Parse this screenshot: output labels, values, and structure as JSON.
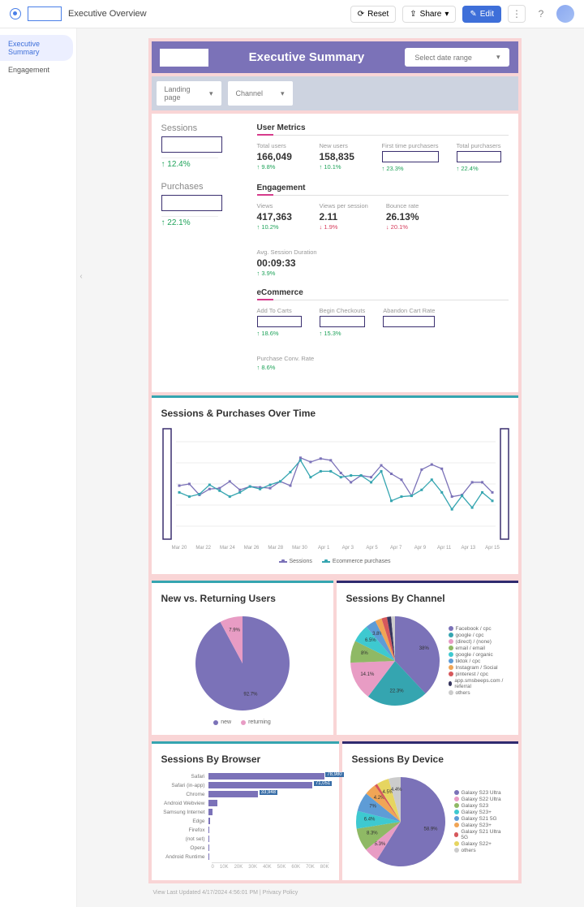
{
  "breadcrumb": "Executive Overview",
  "topbar": {
    "reset": "Reset",
    "share": "Share",
    "edit": "Edit"
  },
  "sidebar": {
    "items": [
      {
        "label": "Executive Summary",
        "active": true
      },
      {
        "label": "Engagement",
        "active": false
      }
    ]
  },
  "header": {
    "title": "Executive Summary",
    "date_range": "Select date range"
  },
  "filters": {
    "landing": "Landing page",
    "channel": "Channel"
  },
  "left_metrics": {
    "sessions": {
      "label": "Sessions",
      "delta": "12.4%",
      "dir": "up"
    },
    "purchases": {
      "label": "Purchases",
      "delta": "22.1%",
      "dir": "up"
    }
  },
  "user_metrics": {
    "title": "User Metrics",
    "items": [
      {
        "label": "Total users",
        "value": "166,049",
        "delta": "↑ 9.8%",
        "dir": "up",
        "boxed": false
      },
      {
        "label": "New users",
        "value": "158,835",
        "delta": "↑ 10.1%",
        "dir": "up",
        "boxed": false
      },
      {
        "label": "First time purchasers",
        "value": "",
        "delta": "↑ 23.3%",
        "dir": "up",
        "boxed": true
      },
      {
        "label": "Total purchasers",
        "value": "",
        "delta": "↑ 22.4%",
        "dir": "up",
        "boxed": true
      }
    ]
  },
  "engagement": {
    "title": "Engagement",
    "items": [
      {
        "label": "Views",
        "value": "417,363",
        "delta": "↑ 10.2%",
        "dir": "up"
      },
      {
        "label": "Views per session",
        "value": "2.11",
        "delta": "↓ 1.9%",
        "dir": "down"
      },
      {
        "label": "Bounce rate",
        "value": "26.13%",
        "delta": "↓ 20.1%",
        "dir": "down"
      },
      {
        "label": "Avg. Session Duration",
        "value": "00:09:33",
        "delta": "↑ 3.9%",
        "dir": "up"
      }
    ]
  },
  "ecommerce": {
    "title": "eCommerce",
    "items": [
      {
        "label": "Add To Carts",
        "value": "",
        "delta": "↑ 18.6%",
        "dir": "up",
        "boxed": true
      },
      {
        "label": "Begin Checkouts",
        "value": "",
        "delta": "↑ 15.3%",
        "dir": "up",
        "boxed": true
      },
      {
        "label": "Abandon Cart Rate",
        "value": "",
        "delta": "",
        "dir": "",
        "boxed": true
      },
      {
        "label": "Purchase Conv. Rate",
        "value": "",
        "delta": "↑ 8.6%",
        "dir": "up",
        "boxed": false,
        "nobox": true
      }
    ]
  },
  "time_chart": {
    "title": "Sessions & Purchases Over Time",
    "border_color": "#35a5b0",
    "x_labels": [
      "Mar 20",
      "Mar 22",
      "Mar 24",
      "Mar 26",
      "Mar 28",
      "Mar 30",
      "Apr 1",
      "Apr 3",
      "Apr 5",
      "Apr 7",
      "Apr 9",
      "Apr 11",
      "Apr 13",
      "Apr 15"
    ],
    "series": [
      {
        "name": "Sessions",
        "color": "#7b72b8",
        "points": [
          48,
          50,
          37,
          44,
          45,
          53,
          43,
          47,
          46,
          45,
          53,
          48,
          81,
          76,
          80,
          78,
          63,
          52,
          60,
          58,
          72,
          62,
          55,
          36,
          67,
          73,
          68,
          35,
          37,
          52,
          52,
          40
        ]
      },
      {
        "name": "Ecommerce purchases",
        "color": "#35a5b0",
        "points": [
          40,
          35,
          38,
          49,
          42,
          35,
          40,
          47,
          44,
          49,
          53,
          64,
          78,
          58,
          65,
          65,
          58,
          60,
          60,
          52,
          65,
          30,
          35,
          36,
          43,
          55,
          40,
          20,
          36,
          22,
          40,
          30
        ]
      }
    ],
    "legend": [
      "Sessions",
      "Ecommerce purchases"
    ]
  },
  "new_returning": {
    "title": "New vs. Returning Users",
    "border_color": "#35a5b0",
    "slices": [
      {
        "label": "new",
        "value": 92.7,
        "color": "#7b72b8"
      },
      {
        "label": "returning",
        "value": 7.9,
        "color": "#e89cc4"
      }
    ]
  },
  "by_channel": {
    "title": "Sessions By Channel",
    "border_color": "#2f2a6f",
    "slices": [
      {
        "label": "Facebook / cpc",
        "value": 38,
        "color": "#7b72b8"
      },
      {
        "label": "google / cpc",
        "value": 22.3,
        "color": "#35a5b0"
      },
      {
        "label": "(direct) / (none)",
        "value": 14.1,
        "color": "#e89cc4"
      },
      {
        "label": "email / email",
        "value": 8.0,
        "color": "#8fb965"
      },
      {
        "label": "google / organic",
        "value": 6.5,
        "color": "#3ec9d0"
      },
      {
        "label": "tiktok / cpc",
        "value": 3.8,
        "color": "#5e9cd6"
      },
      {
        "label": "Instagram / Social",
        "value": 2.4,
        "color": "#f0a556"
      },
      {
        "label": "pinterest / cpc",
        "value": 2.0,
        "color": "#d6585c"
      },
      {
        "label": "app.smsbeeps.com / referral",
        "value": 1.5,
        "color": "#36355e"
      },
      {
        "label": "others",
        "value": 1.4,
        "color": "#cccccc"
      }
    ]
  },
  "by_browser": {
    "title": "Sessions By Browser",
    "border_color": "#35a5b0",
    "bar_color": "#7b72b8",
    "max": 80000,
    "x_ticks": [
      "0",
      "10K",
      "20K",
      "30K",
      "40K",
      "50K",
      "60K",
      "70K",
      "80K"
    ],
    "bars": [
      {
        "label": "Safari",
        "value": 78980,
        "text": "78,980"
      },
      {
        "label": "Safari (in-app)",
        "value": 71051,
        "text": "71,051"
      },
      {
        "label": "Chrome",
        "value": 33948,
        "text": "33,948"
      },
      {
        "label": "Android Webview",
        "value": 6500,
        "text": ""
      },
      {
        "label": "Samsung Internet",
        "value": 2800,
        "text": ""
      },
      {
        "label": "Edge",
        "value": 1600,
        "text": ""
      },
      {
        "label": "Firefox",
        "value": 900,
        "text": ""
      },
      {
        "label": "(not set)",
        "value": 500,
        "text": ""
      },
      {
        "label": "Opera",
        "value": 300,
        "text": ""
      },
      {
        "label": "Android Runtime",
        "value": 200,
        "text": ""
      }
    ]
  },
  "by_device": {
    "title": "Sessions By Device",
    "border_color": "#2f2a6f",
    "slices": [
      {
        "label": "Galaxy S23 Ultra",
        "value": 58.9,
        "color": "#7b72b8"
      },
      {
        "label": "Galaxy S22 Ultra",
        "value": 5.3,
        "color": "#e89cc4"
      },
      {
        "label": "Galaxy S23",
        "value": 8.3,
        "color": "#8fb965"
      },
      {
        "label": "Galaxy S23+",
        "value": 6.4,
        "color": "#3ec9d0"
      },
      {
        "label": "Galaxy S21 5G",
        "value": 7.0,
        "color": "#5e9cd6"
      },
      {
        "label": "Galaxy S23+",
        "value": 4.2,
        "color": "#f0a556"
      },
      {
        "label": "Galaxy S21 Ultra 5G",
        "value": 1.0,
        "color": "#d6585c"
      },
      {
        "label": "Galaxy S22+",
        "value": 4.5,
        "color": "#e6d560"
      },
      {
        "label": "others",
        "value": 4.4,
        "color": "#cccccc"
      }
    ]
  },
  "footer": "View Last Updated 4/17/2024 4:56:01 PM | Privacy Policy"
}
